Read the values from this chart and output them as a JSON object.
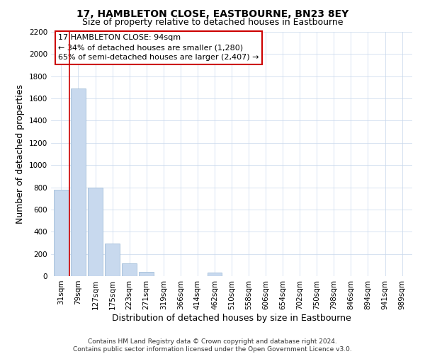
{
  "title": "17, HAMBLETON CLOSE, EASTBOURNE, BN23 8EY",
  "subtitle": "Size of property relative to detached houses in Eastbourne",
  "xlabel": "Distribution of detached houses by size in Eastbourne",
  "ylabel": "Number of detached properties",
  "categories": [
    "31sqm",
    "79sqm",
    "127sqm",
    "175sqm",
    "223sqm",
    "271sqm",
    "319sqm",
    "366sqm",
    "414sqm",
    "462sqm",
    "510sqm",
    "558sqm",
    "606sqm",
    "654sqm",
    "702sqm",
    "750sqm",
    "798sqm",
    "846sqm",
    "894sqm",
    "941sqm",
    "989sqm"
  ],
  "values": [
    780,
    1690,
    800,
    295,
    112,
    38,
    0,
    0,
    0,
    30,
    0,
    0,
    0,
    0,
    0,
    0,
    0,
    0,
    0,
    0,
    0
  ],
  "bar_color": "#c8d9ee",
  "bar_edge_color": "#a0bcd8",
  "vline_x": 0.5,
  "vline_color": "#cc0000",
  "ylim": [
    0,
    2200
  ],
  "yticks": [
    0,
    200,
    400,
    600,
    800,
    1000,
    1200,
    1400,
    1600,
    1800,
    2000,
    2200
  ],
  "annotation_title": "17 HAMBLETON CLOSE: 94sqm",
  "annotation_line1": "← 34% of detached houses are smaller (1,280)",
  "annotation_line2": "65% of semi-detached houses are larger (2,407) →",
  "footer1": "Contains HM Land Registry data © Crown copyright and database right 2024.",
  "footer2": "Contains public sector information licensed under the Open Government Licence v3.0.",
  "title_fontsize": 10,
  "subtitle_fontsize": 9,
  "axis_label_fontsize": 9,
  "tick_fontsize": 7.5,
  "annotation_fontsize": 8,
  "footer_fontsize": 6.5
}
